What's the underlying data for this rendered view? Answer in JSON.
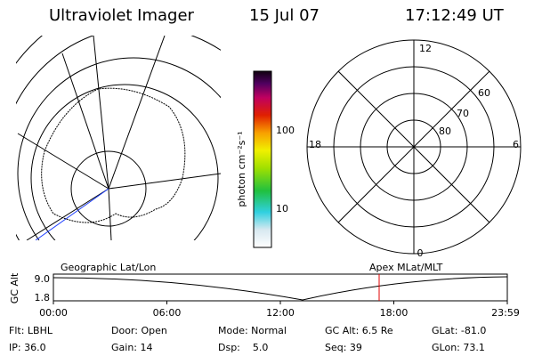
{
  "header": {
    "title": "Ultraviolet Imager",
    "date": "15 Jul 07",
    "time": "17:12:49 UT"
  },
  "colorbar": {
    "label": "photon cm⁻²s⁻¹",
    "ticks": [
      "100",
      "10"
    ]
  },
  "polar": {
    "labels": {
      "top": "12",
      "bottom": "0",
      "left": "18",
      "right": "6"
    },
    "rings": [
      "80",
      "70",
      "60"
    ]
  },
  "timeline": {
    "left_title": "Geographic Lat/Lon",
    "right_title": "Apex MLat/MLT",
    "axis_label": "GC Alt",
    "yticks": [
      "9.0",
      "1.8"
    ],
    "xticks": [
      "00:00",
      "06:00",
      "12:00",
      "18:00",
      "23:59"
    ]
  },
  "info": {
    "rows": [
      [
        "Flt: LBHL",
        "Door: Open",
        "Mode: Normal",
        "GC Alt: 6.5 Re",
        "GLat: -81.0"
      ],
      [
        "IP: 36.0",
        "Gain: 14",
        "Dsp:    5.0",
        "Seq: 39",
        "GLon: 73.1"
      ]
    ]
  }
}
